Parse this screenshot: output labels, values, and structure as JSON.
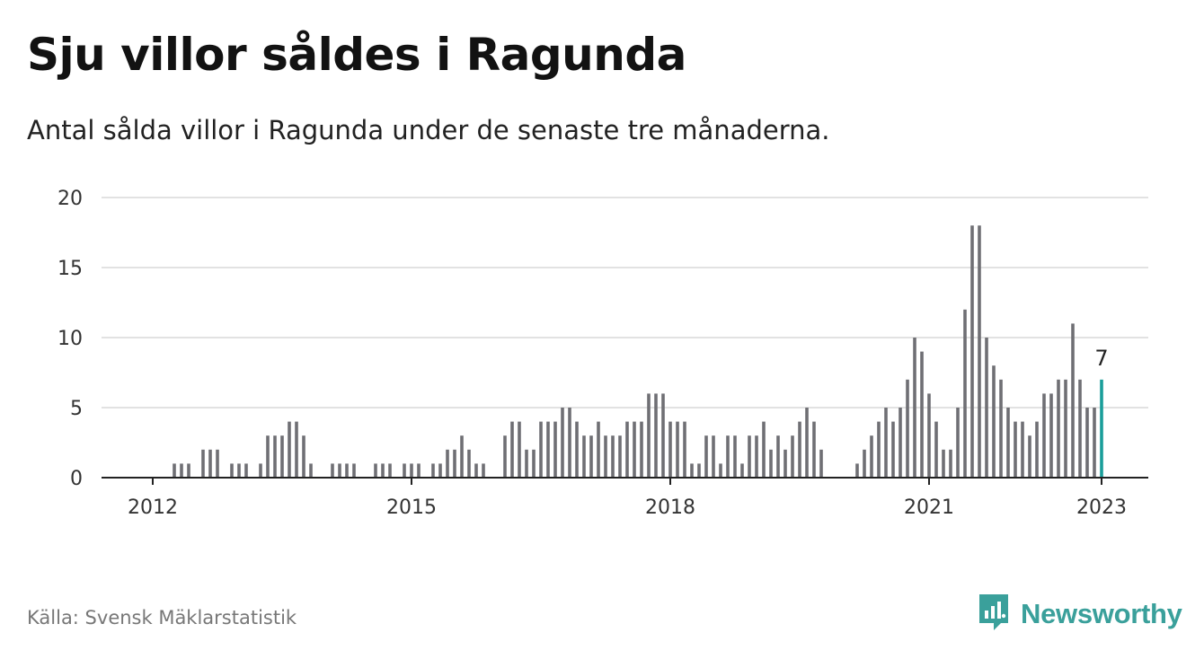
{
  "title": "Sju villor såldes i Ragunda",
  "subtitle": "Antal sålda villor i Ragunda under de senaste tre månaderna.",
  "source": "Källa: Svensk Mäklarstatistik",
  "brand": {
    "name": "Newsworthy",
    "icon": "newsworthy-logo-icon",
    "color": "#3aa09b"
  },
  "chart_data": {
    "type": "bar",
    "x": [
      "2012-01",
      "2012-02",
      "2012-03",
      "2012-04",
      "2012-05",
      "2012-06",
      "2012-07",
      "2012-08",
      "2012-09",
      "2012-10",
      "2012-11",
      "2012-12",
      "2013-01",
      "2013-02",
      "2013-03",
      "2013-04",
      "2013-05",
      "2013-06",
      "2013-07",
      "2013-08",
      "2013-09",
      "2013-10",
      "2013-11",
      "2013-12",
      "2014-01",
      "2014-02",
      "2014-03",
      "2014-04",
      "2014-05",
      "2014-06",
      "2014-07",
      "2014-08",
      "2014-09",
      "2014-10",
      "2014-11",
      "2014-12",
      "2015-01",
      "2015-02",
      "2015-03",
      "2015-04",
      "2015-05",
      "2015-06",
      "2015-07",
      "2015-08",
      "2015-09",
      "2015-10",
      "2015-11",
      "2015-12",
      "2016-01",
      "2016-02",
      "2016-03",
      "2016-04",
      "2016-05",
      "2016-06",
      "2016-07",
      "2016-08",
      "2016-09",
      "2016-10",
      "2016-11",
      "2016-12",
      "2017-01",
      "2017-02",
      "2017-03",
      "2017-04",
      "2017-05",
      "2017-06",
      "2017-07",
      "2017-08",
      "2017-09",
      "2017-10",
      "2017-11",
      "2017-12",
      "2018-01",
      "2018-02",
      "2018-03",
      "2018-04",
      "2018-05",
      "2018-06",
      "2018-07",
      "2018-08",
      "2018-09",
      "2018-10",
      "2018-11",
      "2018-12",
      "2019-01",
      "2019-02",
      "2019-03",
      "2019-04",
      "2019-05",
      "2019-06",
      "2019-07",
      "2019-08",
      "2019-09",
      "2019-10",
      "2019-11",
      "2019-12",
      "2020-01",
      "2020-02",
      "2020-03",
      "2020-04",
      "2020-05",
      "2020-06",
      "2020-07",
      "2020-08",
      "2020-09",
      "2020-10",
      "2020-11",
      "2020-12",
      "2021-01",
      "2021-02",
      "2021-03",
      "2021-04",
      "2021-05",
      "2021-06",
      "2021-07",
      "2021-08",
      "2021-09",
      "2021-10",
      "2021-11",
      "2021-12",
      "2022-01",
      "2022-02",
      "2022-03",
      "2022-04",
      "2022-05",
      "2022-06",
      "2022-07",
      "2022-08",
      "2022-09",
      "2022-10",
      "2022-11",
      "2022-12",
      "2023-01"
    ],
    "values": [
      0,
      0,
      0,
      1,
      1,
      1,
      0,
      2,
      2,
      2,
      0,
      1,
      1,
      1,
      0,
      1,
      3,
      3,
      3,
      4,
      4,
      3,
      1,
      0,
      0,
      1,
      1,
      1,
      1,
      0,
      0,
      1,
      1,
      1,
      0,
      1,
      1,
      1,
      0,
      1,
      1,
      2,
      2,
      3,
      2,
      1,
      1,
      0,
      0,
      3,
      4,
      4,
      2,
      2,
      4,
      4,
      4,
      5,
      5,
      4,
      3,
      3,
      4,
      3,
      3,
      3,
      4,
      4,
      4,
      6,
      6,
      6,
      4,
      4,
      4,
      1,
      1,
      3,
      3,
      1,
      3,
      3,
      1,
      3,
      3,
      4,
      2,
      3,
      2,
      3,
      4,
      5,
      4,
      2,
      0,
      0,
      0,
      0,
      1,
      2,
      3,
      4,
      5,
      4,
      5,
      7,
      10,
      9,
      6,
      4,
      2,
      2,
      5,
      12,
      18,
      18,
      10,
      8,
      7,
      5,
      4,
      4,
      3,
      4,
      6,
      6,
      7,
      7,
      11,
      7,
      5,
      5,
      7
    ],
    "highlight": {
      "x": "2023-01",
      "value": 7,
      "label": "7",
      "color": "#1a9e9a"
    },
    "bar_color": "#6f6f74",
    "x_ticks": [
      "2012",
      "2015",
      "2018",
      "2021",
      "2023"
    ],
    "x_tick_positions": [
      "2012-01",
      "2015-01",
      "2018-01",
      "2021-01",
      "2023-01"
    ],
    "y_ticks": [
      0,
      5,
      10,
      15,
      20
    ],
    "ylim": [
      0,
      20
    ],
    "grid": true,
    "xlabel": "",
    "ylabel": ""
  }
}
